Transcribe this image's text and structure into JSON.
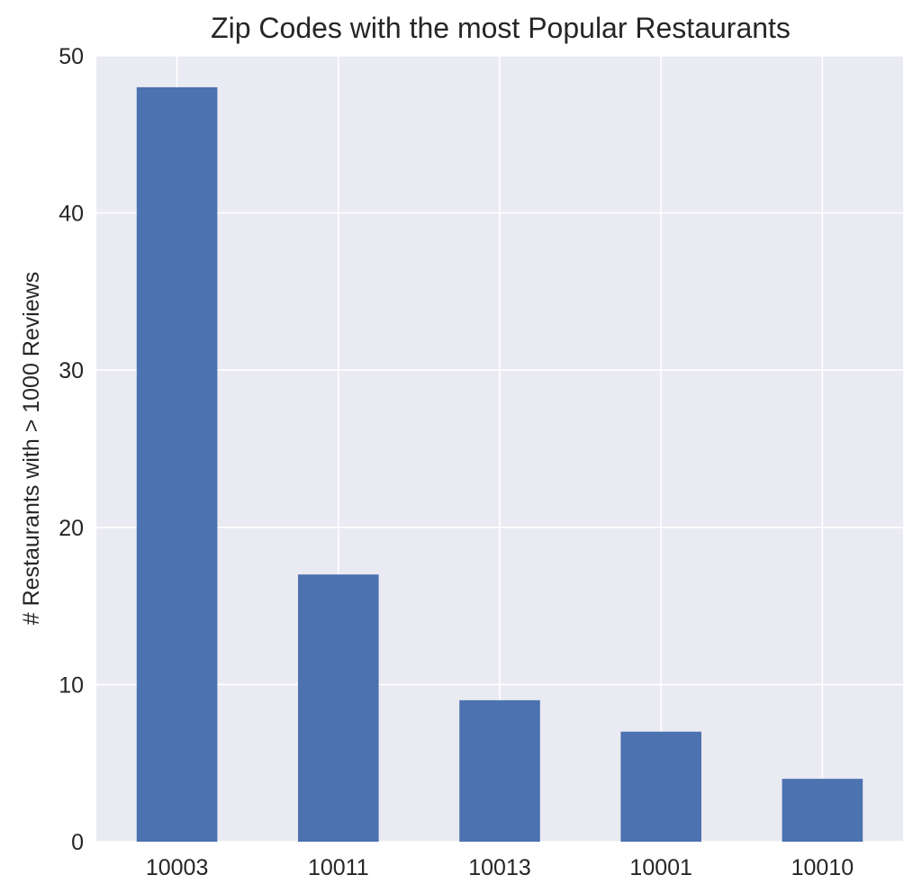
{
  "chart_data": {
    "type": "bar",
    "title": "Zip Codes with the most Popular Restaurants",
    "xlabel": "",
    "ylabel": "# Restaurants with > 1000 Reviews",
    "categories": [
      "10003",
      "10011",
      "10013",
      "10001",
      "10010"
    ],
    "values": [
      48,
      17,
      9,
      7,
      4
    ],
    "ylim": [
      0,
      50
    ],
    "yticks": [
      0,
      10,
      20,
      30,
      40,
      50
    ],
    "grid": true,
    "colors": {
      "bar": "#4c72b0",
      "plot_background": "#eaeaf2",
      "grid": "#ffffff",
      "text": "#262626"
    }
  }
}
